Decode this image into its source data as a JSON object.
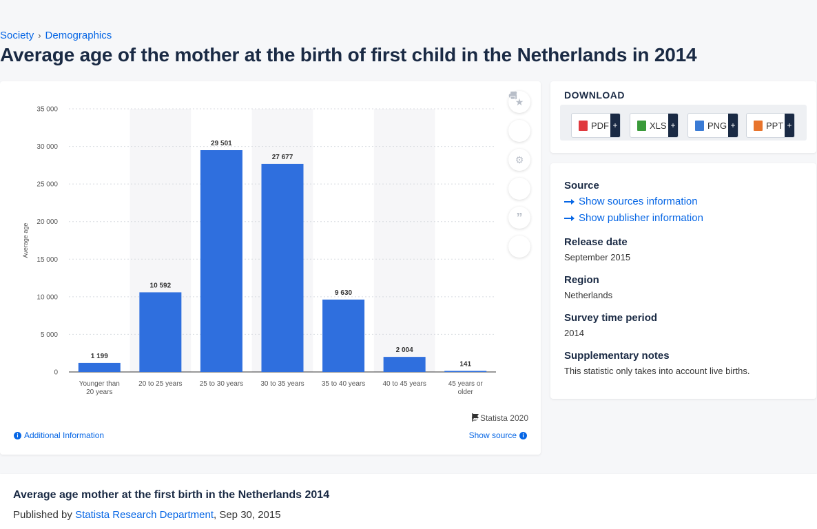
{
  "breadcrumb": {
    "items": [
      "Society",
      "Demographics"
    ],
    "separator": "›"
  },
  "page_title": "Average age of the mother at the birth of first child in the Netherlands in 2014",
  "chart_data": {
    "type": "bar",
    "title": "",
    "xlabel": "",
    "ylabel": "Average age",
    "categories": [
      "Younger than 20 years",
      "20 to 25 years",
      "25 to 30 years",
      "30 to 35 years",
      "35 to 40 years",
      "40 to 45 years",
      "45 years or older"
    ],
    "values": [
      1199,
      10592,
      29501,
      27677,
      9630,
      2004,
      141
    ],
    "value_labels": [
      "1 199",
      "10 592",
      "29 501",
      "27 677",
      "9 630",
      "2 004",
      "141"
    ],
    "ylim": [
      0,
      35000
    ],
    "yticks": [
      0,
      5000,
      10000,
      15000,
      20000,
      25000,
      30000,
      35000
    ],
    "ytick_labels": [
      "0",
      "5 000",
      "10 000",
      "15 000",
      "20 000",
      "25 000",
      "30 000",
      "35 000"
    ],
    "grid": true,
    "bar_color": "#2f6fde",
    "band_color": "#f6f6f8"
  },
  "chart_footer": {
    "copyright": "© Statista 2020",
    "additional_info": "Additional Information",
    "show_source": "Show source"
  },
  "tools": [
    "star-icon",
    "bell-icon",
    "gear-icon",
    "share-icon",
    "quote-icon",
    "print-icon"
  ],
  "download": {
    "title": "DOWNLOAD",
    "buttons": [
      {
        "label": "PDF",
        "color": "#e0393e"
      },
      {
        "label": "XLS",
        "color": "#3a9a3a"
      },
      {
        "label": "PNG",
        "color": "#3a7bd5"
      },
      {
        "label": "PPT",
        "color": "#e8742c"
      }
    ],
    "plus": "+"
  },
  "meta": {
    "source_heading": "Source",
    "sources_link": "Show sources information",
    "publisher_link": "Show publisher information",
    "release_heading": "Release date",
    "release_value": "September 2015",
    "region_heading": "Region",
    "region_value": "Netherlands",
    "survey_heading": "Survey time period",
    "survey_value": "2014",
    "notes_heading": "Supplementary notes",
    "notes_value": "This statistic only takes into account live births."
  },
  "publication": {
    "title": "Average age mother at the first birth in the Netherlands 2014",
    "published_by_prefix": "Published by ",
    "publisher": "Statista Research Department",
    "date_suffix": ", Sep 30, 2015"
  }
}
